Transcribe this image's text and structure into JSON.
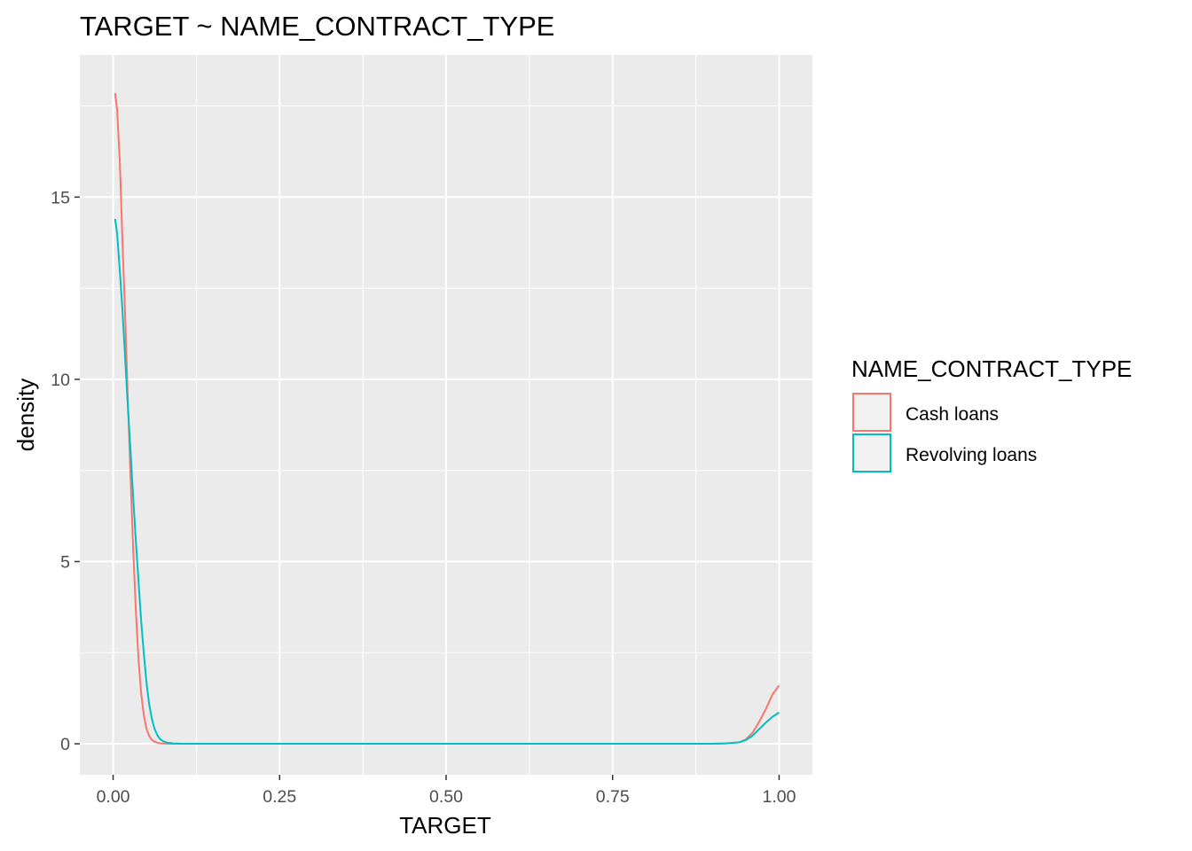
{
  "chart_data": {
    "type": "line",
    "title": "TARGET ~ NAME_CONTRACT_TYPE",
    "xlabel": "TARGET",
    "ylabel": "density",
    "xlim": [
      -0.05,
      1.05
    ],
    "ylim": [
      -0.85,
      18.9
    ],
    "x_ticks": [
      0,
      0.25,
      0.5,
      0.75,
      1
    ],
    "x_tick_labels": [
      "0.00",
      "0.25",
      "0.50",
      "0.75",
      "1.00"
    ],
    "y_ticks": [
      0,
      5,
      10,
      15
    ],
    "y_tick_labels": [
      "0",
      "5",
      "10",
      "15"
    ],
    "grid": true,
    "legend": {
      "title": "NAME_CONTRACT_TYPE",
      "position": "right"
    },
    "series": [
      {
        "name": "Cash loans",
        "color": "#F8766D",
        "x": [
          0.003,
          0.006,
          0.01,
          0.014,
          0.018,
          0.022,
          0.026,
          0.03,
          0.034,
          0.038,
          0.042,
          0.046,
          0.05,
          0.054,
          0.058,
          0.062,
          0.066,
          0.07,
          0.075,
          0.08,
          0.09,
          0.1,
          0.15,
          0.3,
          0.5,
          0.7,
          0.85,
          0.9,
          0.92,
          0.94,
          0.95,
          0.96,
          0.97,
          0.98,
          0.99,
          1.0
        ],
        "values": [
          17.85,
          17.4,
          16.0,
          13.8,
          11.8,
          9.5,
          7.4,
          5.4,
          3.7,
          2.35,
          1.4,
          0.8,
          0.42,
          0.22,
          0.11,
          0.06,
          0.03,
          0.015,
          0.008,
          0.004,
          0.001,
          0.0,
          0.0,
          0.0,
          0.0,
          0.0,
          0.0,
          0.0,
          0.01,
          0.04,
          0.12,
          0.3,
          0.6,
          0.95,
          1.35,
          1.6
        ]
      },
      {
        "name": "Revolving loans",
        "color": "#00BFC4",
        "x": [
          0.003,
          0.006,
          0.01,
          0.014,
          0.018,
          0.022,
          0.026,
          0.03,
          0.034,
          0.038,
          0.042,
          0.046,
          0.05,
          0.054,
          0.058,
          0.062,
          0.066,
          0.07,
          0.075,
          0.08,
          0.09,
          0.1,
          0.15,
          0.3,
          0.5,
          0.7,
          0.85,
          0.9,
          0.92,
          0.94,
          0.95,
          0.96,
          0.97,
          0.98,
          0.99,
          1.0
        ],
        "values": [
          14.4,
          14.0,
          13.0,
          11.9,
          10.6,
          9.3,
          8.1,
          6.8,
          5.6,
          4.5,
          3.4,
          2.5,
          1.7,
          1.1,
          0.7,
          0.42,
          0.25,
          0.14,
          0.07,
          0.035,
          0.01,
          0.003,
          0.0,
          0.0,
          0.0,
          0.0,
          0.0,
          0.002,
          0.01,
          0.04,
          0.1,
          0.22,
          0.4,
          0.58,
          0.74,
          0.86
        ]
      }
    ]
  }
}
